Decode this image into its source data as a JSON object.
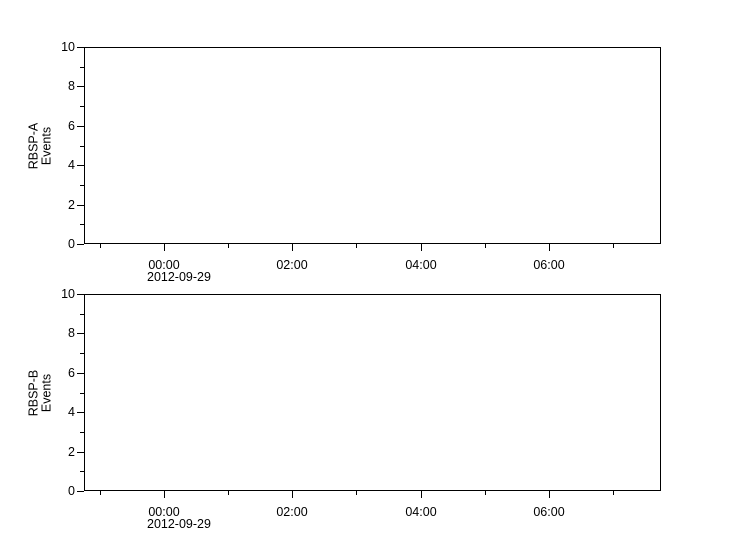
{
  "colors": {
    "foreground": "#000000",
    "background": "#ffffff"
  },
  "chart_data": [
    {
      "type": "line",
      "title": "",
      "ylabel": "RBSP-A Events",
      "ylabel_lines": "RBSP-A\nEvents",
      "ylim": [
        0,
        10
      ],
      "yticks_major": [
        0,
        2,
        4,
        6,
        8,
        10
      ],
      "yticks_minor": [
        1,
        3,
        5,
        7,
        9
      ],
      "grid": false,
      "legend": "none",
      "series": [],
      "x_axis": {
        "kind": "time",
        "date_label": "2012-09-29",
        "range_hours_from_midnight": [
          -1.25,
          7.75
        ],
        "major_ticks": [
          {
            "hour": 0,
            "label": "00:00"
          },
          {
            "hour": 2,
            "label": "02:00"
          },
          {
            "hour": 4,
            "label": "04:00"
          },
          {
            "hour": 6,
            "label": "06:00"
          }
        ],
        "minor_tick_hours": [
          -1,
          1,
          3,
          5,
          7
        ]
      }
    },
    {
      "type": "line",
      "title": "",
      "ylabel": "RBSP-B Events",
      "ylabel_lines": "RBSP-B\nEvents",
      "ylim": [
        0,
        10
      ],
      "yticks_major": [
        0,
        2,
        4,
        6,
        8,
        10
      ],
      "yticks_minor": [
        1,
        3,
        5,
        7,
        9
      ],
      "grid": false,
      "legend": "none",
      "series": [],
      "x_axis": {
        "kind": "time",
        "date_label": "2012-09-29",
        "range_hours_from_midnight": [
          -1.25,
          7.75
        ],
        "major_ticks": [
          {
            "hour": 0,
            "label": "00:00"
          },
          {
            "hour": 2,
            "label": "02:00"
          },
          {
            "hour": 4,
            "label": "04:00"
          },
          {
            "hour": 6,
            "label": "06:00"
          }
        ],
        "minor_tick_hours": [
          -1,
          1,
          3,
          5,
          7
        ]
      }
    }
  ]
}
